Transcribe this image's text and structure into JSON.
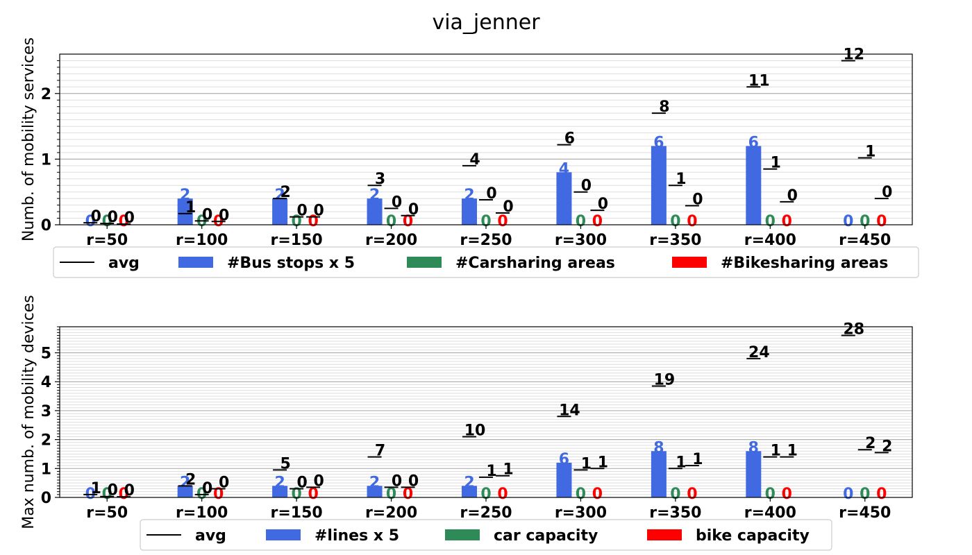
{
  "title": "via_jenner",
  "colors": {
    "bus": "#4169e1",
    "car": "#2e8b57",
    "bike": "#ff0000",
    "avg": "#000000"
  },
  "chart_data": [
    {
      "type": "bar",
      "ylabel": "Numb. of mobility services",
      "categories": [
        "r=50",
        "r=100",
        "r=150",
        "r=200",
        "r=250",
        "r=300",
        "r=350",
        "r=400",
        "r=450"
      ],
      "ylim": [
        0,
        2.6
      ],
      "yticks": [
        0,
        1,
        2
      ],
      "grid": true,
      "series": [
        {
          "name": "#Bus stops x 5",
          "key": "bus",
          "values": [
            0,
            0.4,
            0.4,
            0.4,
            0.4,
            0.8,
            1.2,
            1.2,
            0
          ],
          "labels": [
            "0",
            "2",
            "2",
            "2",
            "2",
            "4",
            "6",
            "6",
            "0"
          ]
        },
        {
          "name": "#Carsharing areas",
          "key": "car",
          "values": [
            0,
            0,
            0,
            0,
            0,
            0,
            0,
            0,
            0
          ],
          "labels": [
            "0",
            "0",
            "0",
            "0",
            "0",
            "0",
            "0",
            "0",
            "0"
          ]
        },
        {
          "name": "#Bikesharing areas",
          "key": "bike",
          "values": [
            0,
            0,
            0,
            0,
            0,
            0,
            0,
            0,
            0
          ],
          "labels": [
            "0",
            "0",
            "0",
            "0",
            "0",
            "0",
            "0",
            "0",
            "0"
          ]
        }
      ],
      "avg": {
        "name": "avg",
        "bus": {
          "values": [
            0.03,
            0.17,
            0.4,
            0.6,
            0.9,
            1.22,
            1.7,
            2.1,
            2.5
          ],
          "labels": [
            "0",
            "1",
            "2",
            "3",
            "4",
            "6",
            "8",
            "11",
            "12"
          ]
        },
        "car": {
          "values": [
            0.02,
            0.06,
            0.12,
            0.25,
            0.38,
            0.5,
            0.6,
            0.85,
            1.02
          ],
          "labels": [
            "0",
            "0",
            "0",
            "0",
            "0",
            "0",
            "1",
            "1",
            "1"
          ]
        },
        "bike": {
          "values": [
            0.01,
            0.05,
            0.12,
            0.14,
            0.18,
            0.22,
            0.29,
            0.35,
            0.4
          ],
          "labels": [
            "0",
            "0",
            "0",
            "0",
            "0",
            "0",
            "0",
            "0",
            "0"
          ]
        }
      },
      "legend": "below"
    },
    {
      "type": "bar",
      "ylabel": "Max numb. of mobility devices",
      "categories": [
        "r=50",
        "r=100",
        "r=150",
        "r=200",
        "r=250",
        "r=300",
        "r=350",
        "r=400",
        "r=450"
      ],
      "ylim": [
        0,
        5.9
      ],
      "yticks": [
        0,
        1,
        2,
        3,
        4,
        5
      ],
      "grid": true,
      "series": [
        {
          "name": "#lines x 5",
          "key": "bus",
          "values": [
            0,
            0.4,
            0.4,
            0.4,
            0.4,
            1.2,
            1.6,
            1.6,
            0
          ],
          "labels": [
            "0",
            "2",
            "2",
            "2",
            "2",
            "6",
            "8",
            "8",
            "0"
          ]
        },
        {
          "name": "car capacity",
          "key": "car",
          "values": [
            0,
            0,
            0,
            0,
            0,
            0,
            0,
            0,
            0
          ],
          "labels": [
            "0",
            "0",
            "0",
            "0",
            "0",
            "0",
            "0",
            "0",
            "0"
          ]
        },
        {
          "name": "bike capacity",
          "key": "bike",
          "values": [
            0,
            0,
            0,
            0,
            0,
            0,
            0,
            0,
            0
          ],
          "labels": [
            "0",
            "0",
            "0",
            "0",
            "0",
            "0",
            "0",
            "0",
            "0"
          ]
        }
      ],
      "avg": {
        "name": "avg",
        "bus": {
          "values": [
            0.1,
            0.4,
            0.95,
            1.4,
            2.1,
            2.8,
            3.85,
            4.8,
            5.6
          ],
          "labels": [
            "1",
            "2",
            "5",
            "7",
            "10",
            "14",
            "19",
            "24",
            "28"
          ]
        },
        "car": {
          "values": [
            0.03,
            0.1,
            0.3,
            0.35,
            0.7,
            0.95,
            1.0,
            1.4,
            1.65
          ],
          "labels": [
            "0",
            "0",
            "0",
            "0",
            "1",
            "1",
            "1",
            "1",
            "2"
          ]
        },
        "bike": {
          "values": [
            0.02,
            0.3,
            0.35,
            0.35,
            0.75,
            1.0,
            1.1,
            1.4,
            1.55
          ],
          "labels": [
            "0",
            "0",
            "0",
            "0",
            "1",
            "1",
            "1",
            "1",
            "2"
          ]
        }
      },
      "legend": "below"
    }
  ]
}
